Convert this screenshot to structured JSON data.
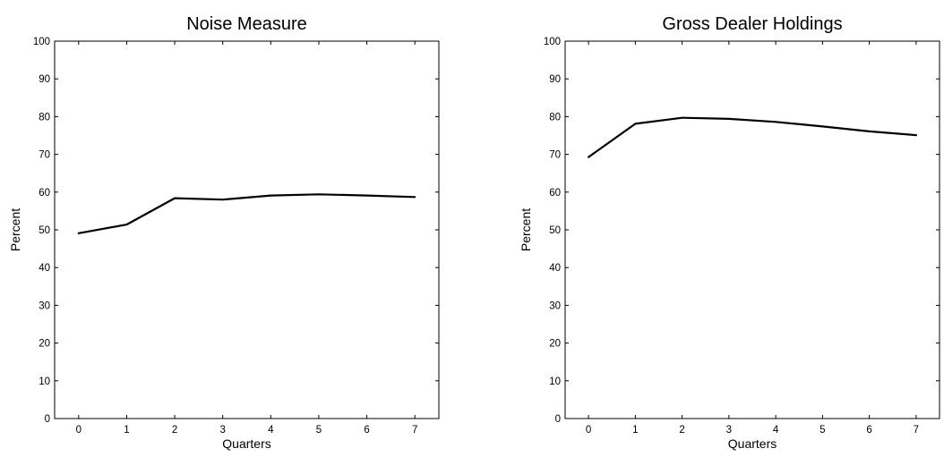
{
  "chart_data": [
    {
      "type": "line",
      "title": "Noise Measure",
      "xlabel": "Quarters",
      "ylabel": "Percent",
      "x": [
        0,
        1,
        2,
        3,
        4,
        5,
        6,
        7
      ],
      "xlim": [
        -0.5,
        7.5
      ],
      "ylim": [
        0,
        100
      ],
      "xticks": [
        0,
        1,
        2,
        3,
        4,
        5,
        6,
        7
      ],
      "yticks": [
        0,
        10,
        20,
        30,
        40,
        50,
        60,
        70,
        80,
        90,
        100
      ],
      "grid": false,
      "series": [
        {
          "values": [
            49.1,
            51.4,
            58.4,
            58.0,
            59.1,
            59.4,
            59.1,
            58.7
          ],
          "color": "#000000"
        }
      ]
    },
    {
      "type": "line",
      "title": "Gross Dealer Holdings",
      "xlabel": "Quarters",
      "ylabel": "Percent",
      "x": [
        0,
        1,
        2,
        3,
        4,
        5,
        6,
        7
      ],
      "xlim": [
        -0.5,
        7.5
      ],
      "ylim": [
        0,
        100
      ],
      "xticks": [
        0,
        1,
        2,
        3,
        4,
        5,
        6,
        7
      ],
      "yticks": [
        0,
        10,
        20,
        30,
        40,
        50,
        60,
        70,
        80,
        90,
        100
      ],
      "grid": false,
      "series": [
        {
          "values": [
            69.3,
            78.1,
            79.7,
            79.4,
            78.6,
            77.4,
            76.1,
            75.1
          ],
          "color": "#000000"
        }
      ]
    }
  ]
}
